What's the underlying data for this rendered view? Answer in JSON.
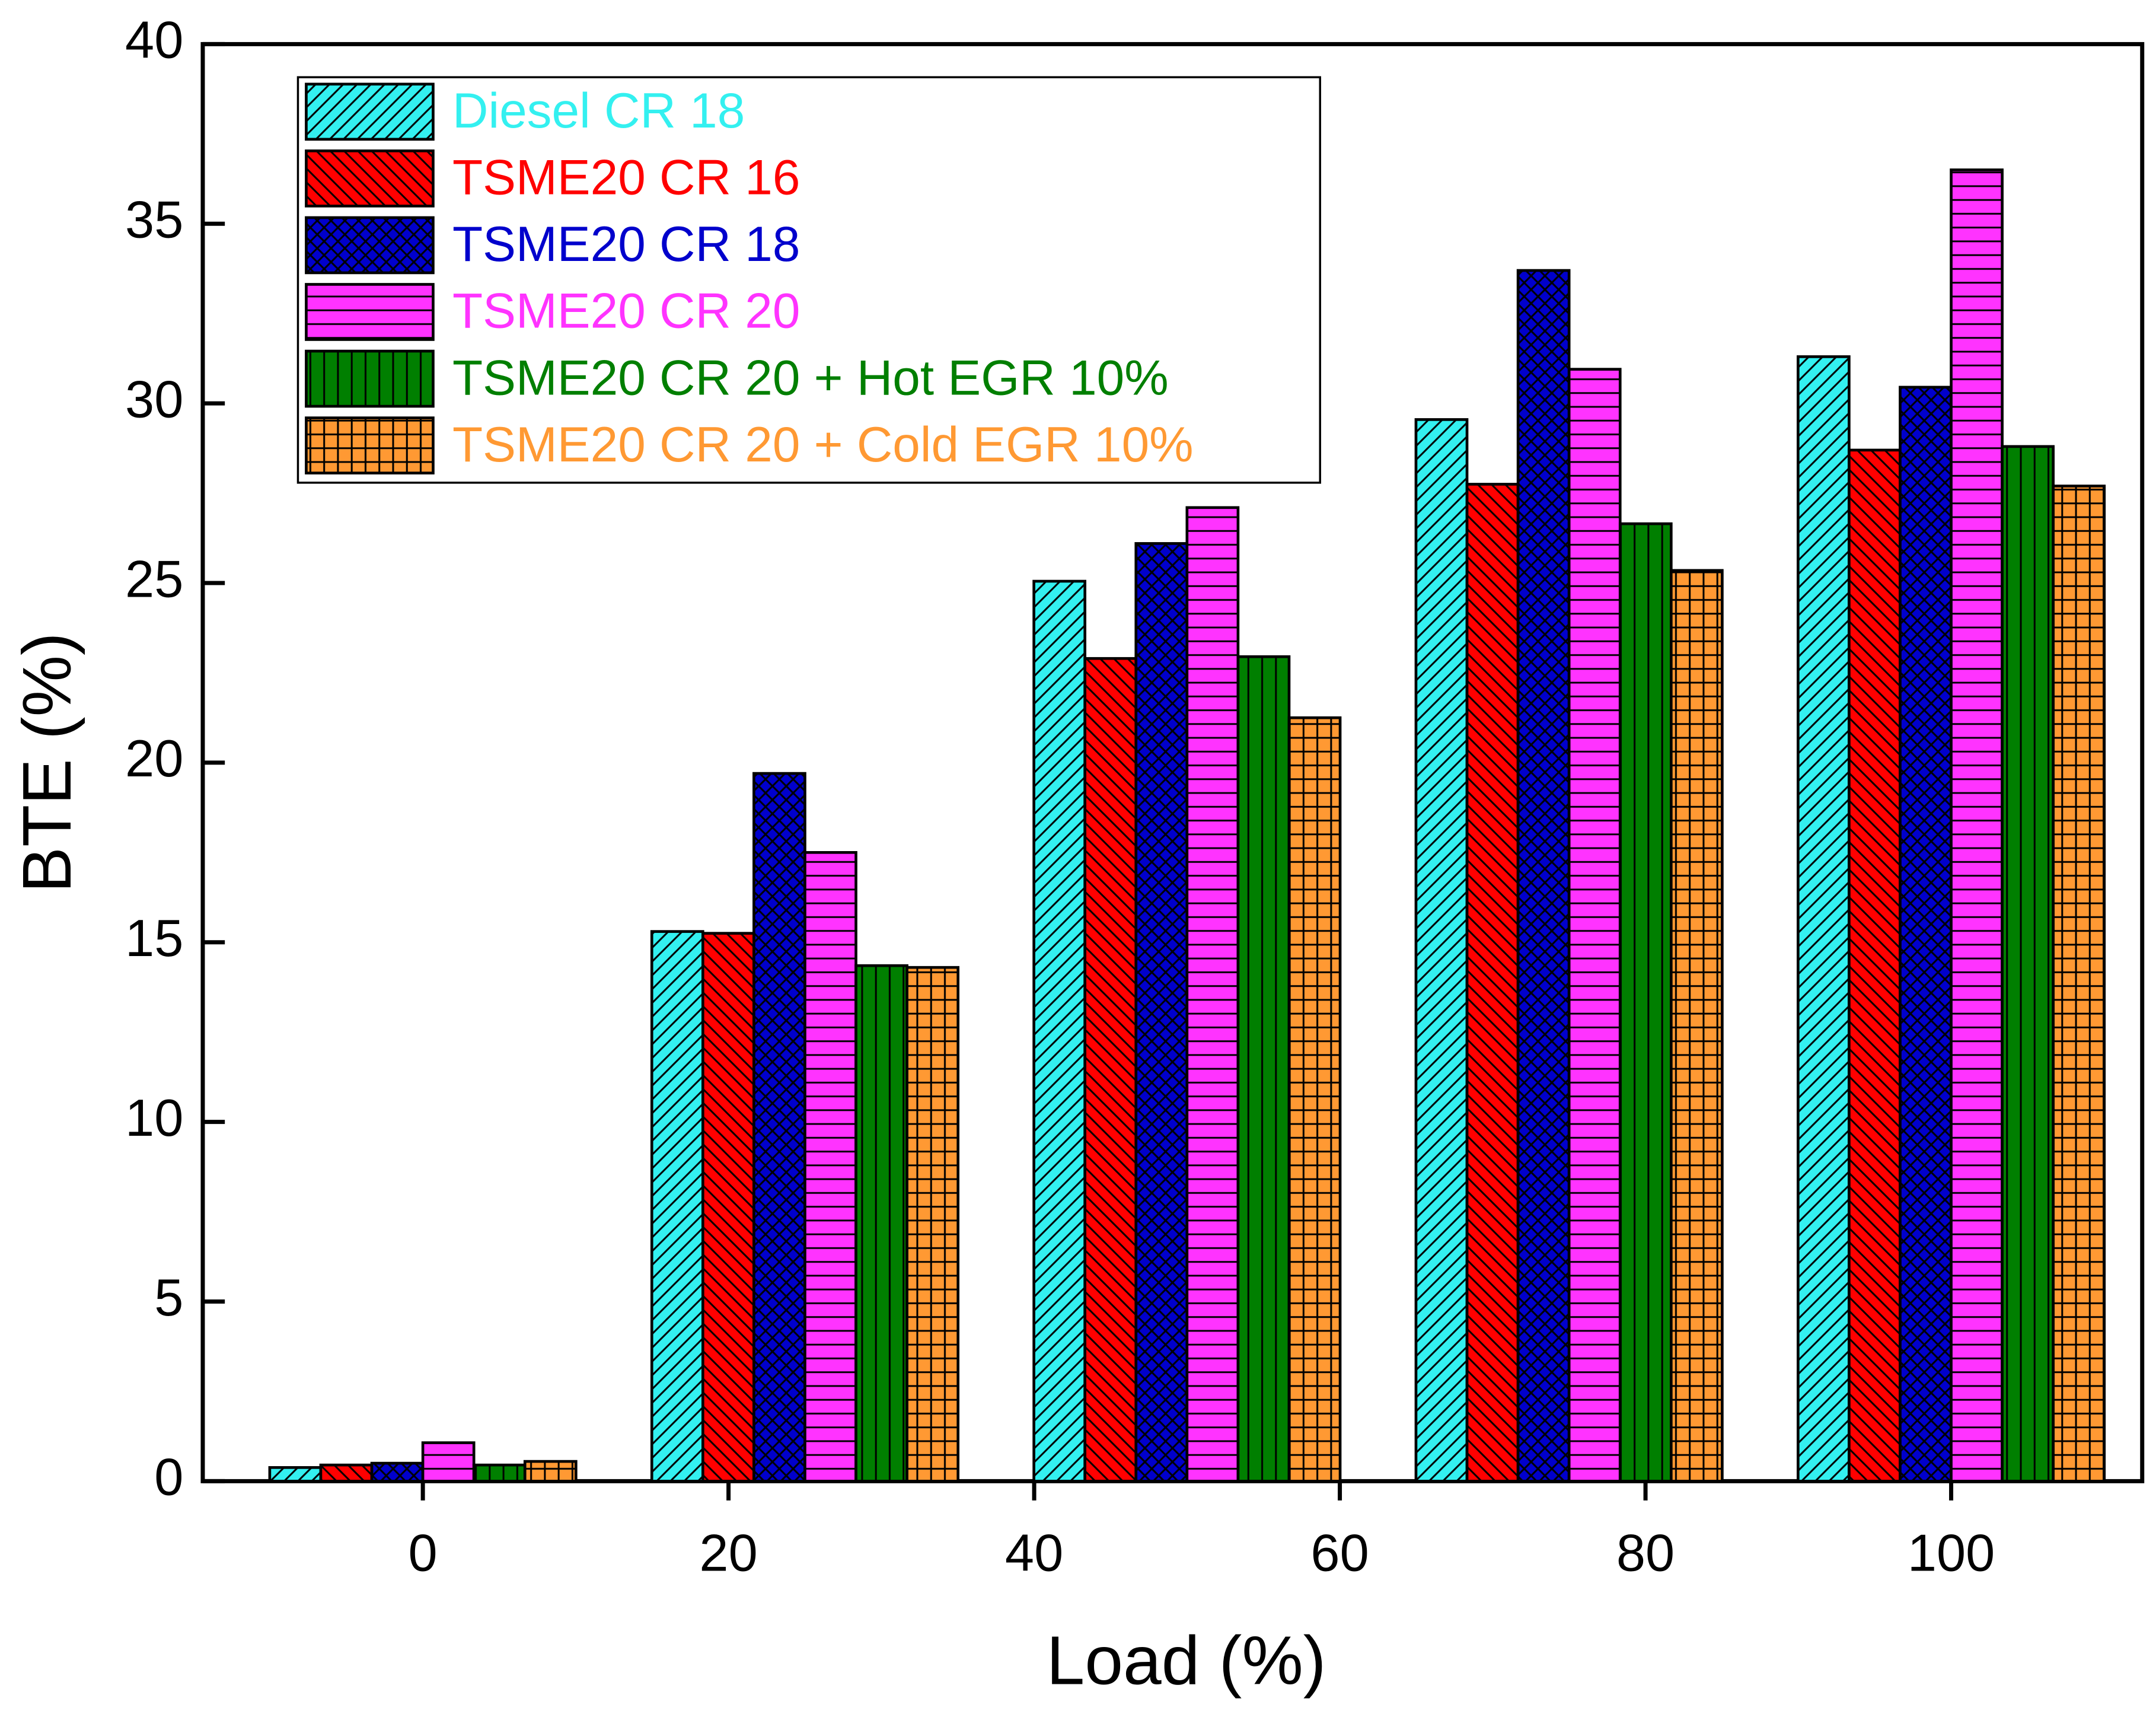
{
  "chart_data": {
    "type": "bar",
    "x_label": "Load (%)",
    "y_label": "BTE (%)",
    "x": [
      0,
      25,
      50,
      75,
      100
    ],
    "series": [
      {
        "name": "Diesel CR 18",
        "color": "#33f0f0",
        "values": [
          0.38,
          15.3,
          25.05,
          29.55,
          31.3
        ]
      },
      {
        "name": "TSME20 CR 16",
        "color": "#ff0000",
        "values": [
          0.45,
          15.25,
          22.9,
          27.75,
          28.7
        ]
      },
      {
        "name": "TSME20 CR 18",
        "color": "#0000cc",
        "values": [
          0.5,
          19.7,
          26.1,
          33.7,
          30.45
        ]
      },
      {
        "name": "TSME20 CR 20",
        "color": "#ff33ff",
        "values": [
          1.07,
          17.5,
          27.1,
          30.95,
          36.5
        ]
      },
      {
        "name": "TSME20 CR 20 + Hot EGR 10%",
        "color": "#007f00",
        "values": [
          0.45,
          14.35,
          22.95,
          26.65,
          28.8
        ]
      },
      {
        "name": "TSME20 CR 20 + Cold EGR 10%",
        "color": "#ff9933",
        "values": [
          0.55,
          14.3,
          21.25,
          25.35,
          27.7
        ]
      }
    ],
    "xlim": [
      -14.4,
      112.5
    ],
    "xticks": [
      0,
      20,
      40,
      60,
      80,
      100
    ],
    "ylim": [
      0,
      40
    ],
    "yticks": [
      0,
      5,
      10,
      15,
      20,
      25,
      30,
      35,
      40
    ],
    "legend": "upper left"
  }
}
